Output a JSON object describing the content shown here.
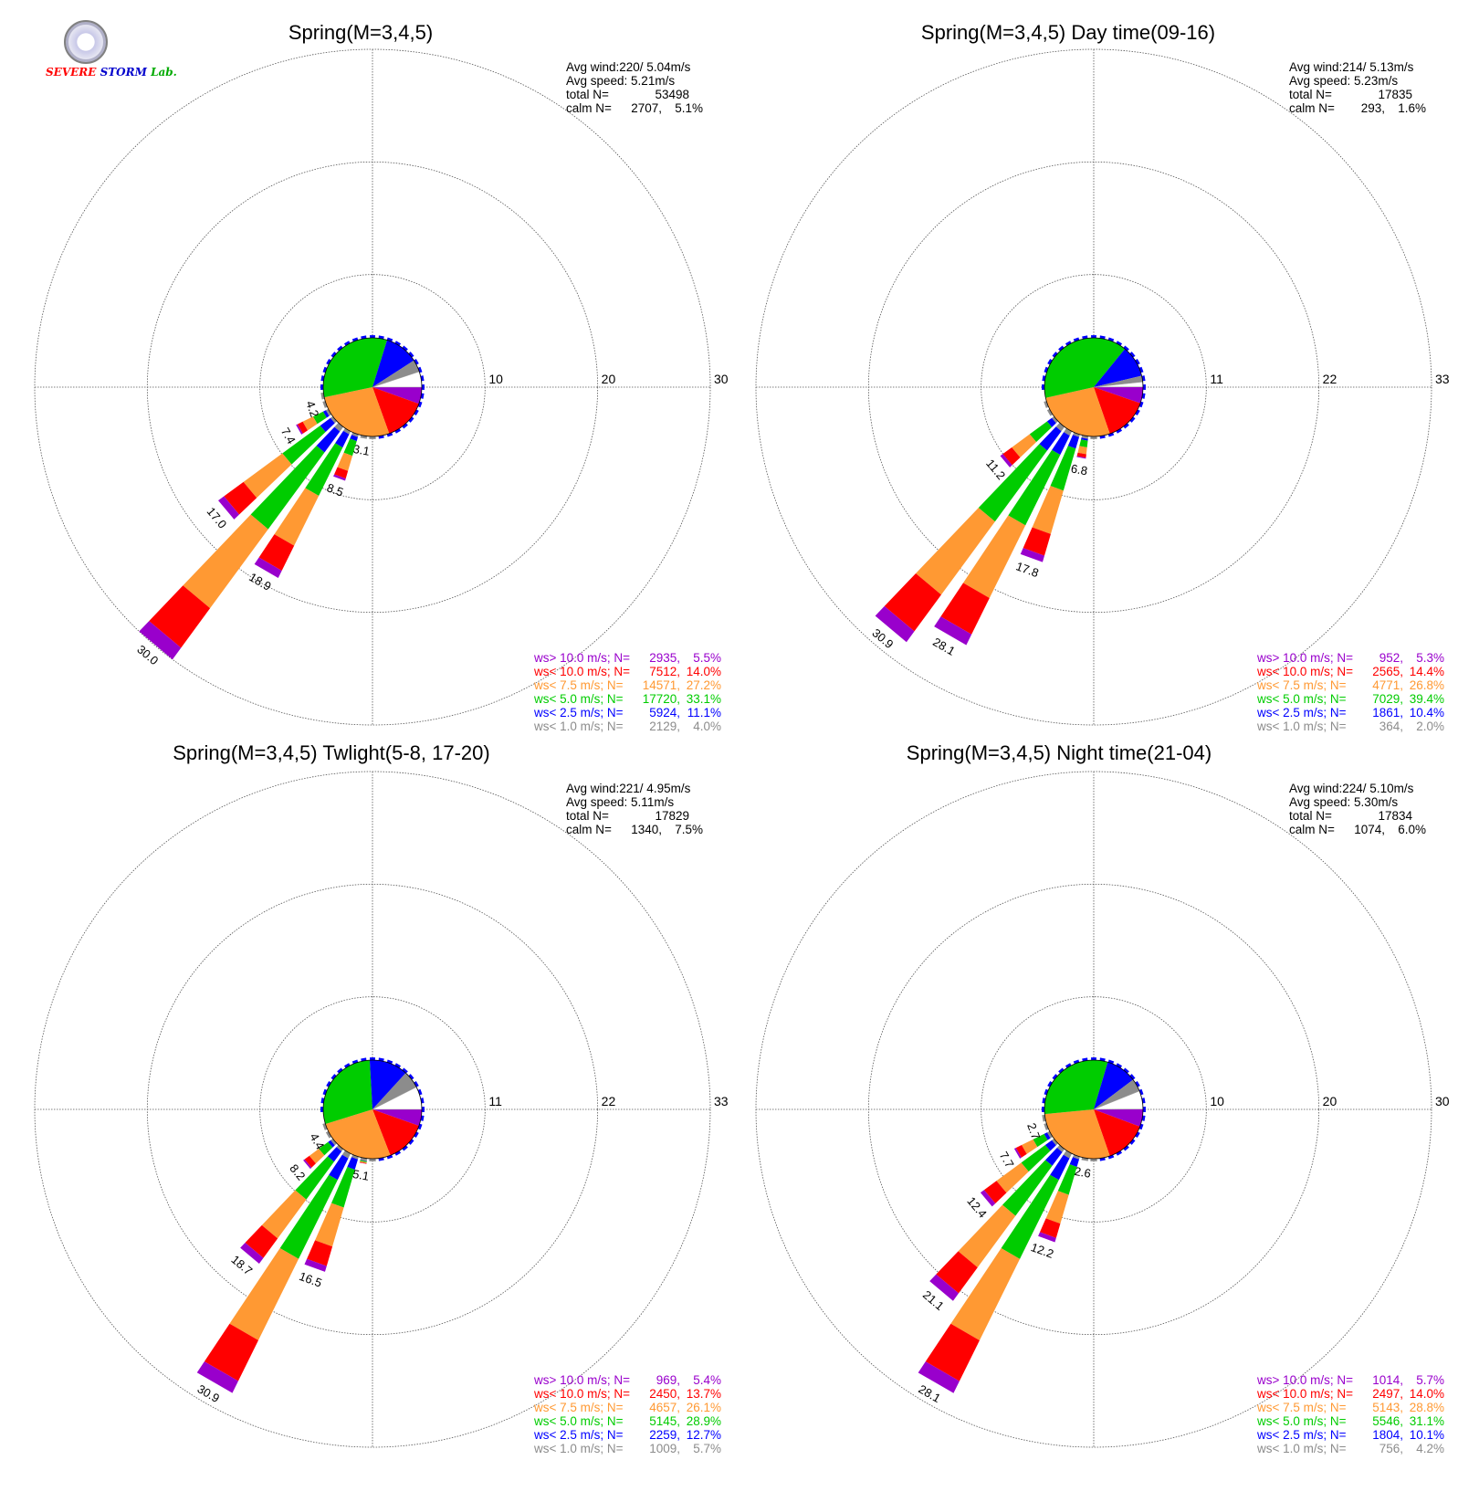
{
  "logo": {
    "text1": "SEVERE",
    "text2": "STORM",
    "text3": "Lab."
  },
  "colors": {
    "purple": "#9900cc",
    "red": "#ff0000",
    "orange": "#ff9933",
    "green": "#00cc00",
    "blue": "#0000ff",
    "gray": "#8c8c8c",
    "calm_white": "#ffffff",
    "grid": "#555555"
  },
  "legend_labels": [
    "ws> 10.0 m/s; N=",
    "ws< 10.0 m/s; N=",
    "ws<  7.5 m/s; N=",
    "ws<  5.0 m/s; N=",
    "ws<  2.5 m/s; N=",
    "ws<  1.0 m/s; N="
  ],
  "stat_labels": [
    "Avg wind:",
    "Avg speed:",
    "total N=",
    "calm N="
  ],
  "chart_data": [
    {
      "type": "windrose",
      "title": "Spring(M=3,4,5)",
      "ring_labels": [
        "10",
        "20",
        "30"
      ],
      "rmax": 30,
      "stats": {
        "avg_wind": "220/ 5.04m/s",
        "avg_speed": "5.21m/s",
        "total_n": "53498",
        "calm_n": "2707",
        "calm_pct": "5.1%"
      },
      "legend": [
        {
          "n": "2935",
          "pct": "5.5%"
        },
        {
          "n": "7512",
          "pct": "14.0%"
        },
        {
          "n": "14571",
          "pct": "27.2%"
        },
        {
          "n": "17720",
          "pct": "33.1%"
        },
        {
          "n": "5924",
          "pct": "11.1%"
        },
        {
          "n": "2129",
          "pct": "4.0%"
        }
      ],
      "pie": [
        0.055,
        0.14,
        0.272,
        0.331,
        0.111,
        0.04,
        0.051
      ],
      "directions": [
        {
          "deg": 180,
          "value": 1.0
        },
        {
          "deg": 190,
          "value": 3.1,
          "label": "3.1"
        },
        {
          "deg": 200,
          "value": 8.5,
          "label": "8.5"
        },
        {
          "deg": 210,
          "value": 18.9,
          "label": "18.9"
        },
        {
          "deg": 220,
          "value": 30.0,
          "label": "30.0"
        },
        {
          "deg": 230,
          "value": 17.0,
          "label": "17.0"
        },
        {
          "deg": 240,
          "value": 7.4,
          "label": "7.4"
        },
        {
          "deg": 250,
          "value": 4.2,
          "label": "4.2"
        },
        {
          "deg": 260,
          "value": 1.5
        }
      ]
    },
    {
      "type": "windrose",
      "title": "Spring(M=3,4,5) Day time(09-16)",
      "ring_labels": [
        "11",
        "22",
        "33"
      ],
      "rmax": 33,
      "stats": {
        "avg_wind": "214/ 5.13m/s",
        "avg_speed": "5.23m/s",
        "total_n": "17835",
        "calm_n": "293",
        "calm_pct": "1.6%"
      },
      "legend": [
        {
          "n": "952",
          "pct": "5.3%"
        },
        {
          "n": "2565",
          "pct": "14.4%"
        },
        {
          "n": "4771",
          "pct": "26.8%"
        },
        {
          "n": "7029",
          "pct": "39.4%"
        },
        {
          "n": "1861",
          "pct": "10.4%"
        },
        {
          "n": "364",
          "pct": "2.0%"
        }
      ],
      "pie": [
        0.053,
        0.144,
        0.268,
        0.394,
        0.104,
        0.02,
        0.016
      ],
      "directions": [
        {
          "deg": 180,
          "value": 1.0
        },
        {
          "deg": 190,
          "value": 6.8,
          "label": "6.8"
        },
        {
          "deg": 200,
          "value": 17.8,
          "label": "17.8"
        },
        {
          "deg": 210,
          "value": 28.1,
          "label": "28.1"
        },
        {
          "deg": 220,
          "value": 30.9,
          "label": "30.9"
        },
        {
          "deg": 230,
          "value": 11.2,
          "label": "11.2"
        },
        {
          "deg": 240,
          "value": 1.5
        },
        {
          "deg": 250,
          "value": 1.2
        }
      ]
    },
    {
      "type": "windrose",
      "title": "Spring(M=3,4,5) Twlight(5-8, 17-20)",
      "ring_labels": [
        "11",
        "22",
        "33"
      ],
      "rmax": 33,
      "stats": {
        "avg_wind": "221/ 4.95m/s",
        "avg_speed": "5.11m/s",
        "total_n": "17829",
        "calm_n": "1340",
        "calm_pct": "7.5%"
      },
      "legend": [
        {
          "n": "969",
          "pct": "5.4%"
        },
        {
          "n": "2450",
          "pct": "13.7%"
        },
        {
          "n": "4657",
          "pct": "26.1%"
        },
        {
          "n": "5145",
          "pct": "28.9%"
        },
        {
          "n": "2259",
          "pct": "12.7%"
        },
        {
          "n": "1009",
          "pct": "5.7%"
        }
      ],
      "pie": [
        0.054,
        0.137,
        0.261,
        0.289,
        0.127,
        0.057,
        0.075
      ],
      "directions": [
        {
          "deg": 180,
          "value": 1.2
        },
        {
          "deg": 190,
          "value": 5.1,
          "label": "5.1"
        },
        {
          "deg": 200,
          "value": 16.5,
          "label": "16.5"
        },
        {
          "deg": 210,
          "value": 30.9,
          "label": "30.9"
        },
        {
          "deg": 220,
          "value": 18.7,
          "label": "18.7"
        },
        {
          "deg": 230,
          "value": 8.2,
          "label": "8.2"
        },
        {
          "deg": 240,
          "value": 4.4,
          "label": "4.4"
        },
        {
          "deg": 250,
          "value": 1.5
        }
      ]
    },
    {
      "type": "windrose",
      "title": "Spring(M=3,4,5) Night time(21-04)",
      "ring_labels": [
        "10",
        "20",
        "30"
      ],
      "rmax": 30,
      "stats": {
        "avg_wind": "224/ 5.10m/s",
        "avg_speed": "5.30m/s",
        "total_n": "17834",
        "calm_n": "1074",
        "calm_pct": "6.0%"
      },
      "legend": [
        {
          "n": "1014",
          "pct": "5.7%"
        },
        {
          "n": "2497",
          "pct": "14.0%"
        },
        {
          "n": "5143",
          "pct": "28.8%"
        },
        {
          "n": "5546",
          "pct": "31.1%"
        },
        {
          "n": "1804",
          "pct": "10.1%"
        },
        {
          "n": "756",
          "pct": "4.2%"
        }
      ],
      "pie": [
        0.057,
        0.14,
        0.288,
        0.311,
        0.101,
        0.042,
        0.06
      ],
      "directions": [
        {
          "deg": 180,
          "value": 1.0
        },
        {
          "deg": 190,
          "value": 2.6,
          "label": "2.6"
        },
        {
          "deg": 200,
          "value": 12.2,
          "label": "12.2"
        },
        {
          "deg": 210,
          "value": 28.1,
          "label": "28.1"
        },
        {
          "deg": 220,
          "value": 21.1,
          "label": "21.1"
        },
        {
          "deg": 230,
          "value": 12.4,
          "label": "12.4"
        },
        {
          "deg": 240,
          "value": 7.7,
          "label": "7.7"
        },
        {
          "deg": 250,
          "value": 2.7,
          "label": "2.7"
        },
        {
          "deg": 260,
          "value": 1.2
        }
      ]
    }
  ]
}
